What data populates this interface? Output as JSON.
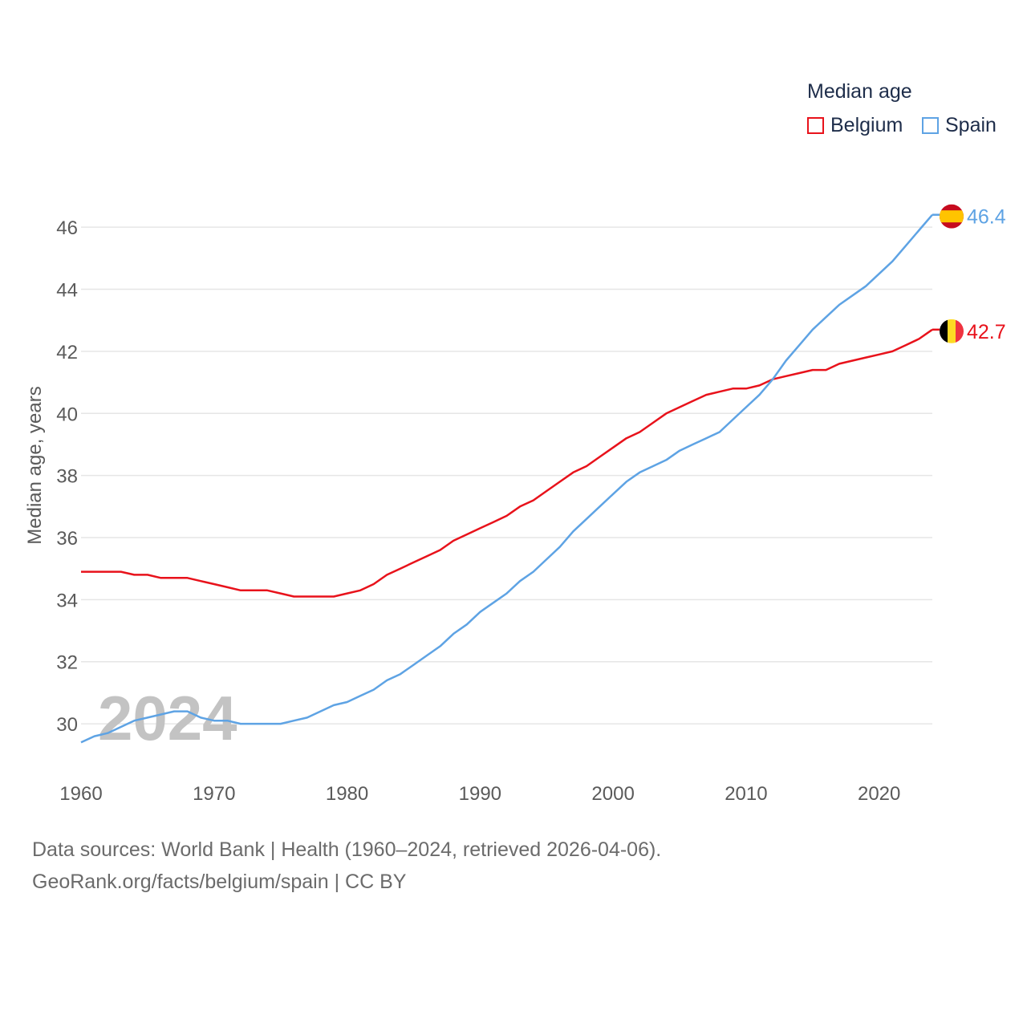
{
  "legend": {
    "title": "Median age",
    "items": [
      {
        "name": "Belgium",
        "color": "#e8121b"
      },
      {
        "name": "Spain",
        "color": "#5ea3e4"
      }
    ]
  },
  "watermark_year": "2024",
  "footer": {
    "line1": "Data sources: World Bank | Health (1960–2024, retrieved 2026-04-06).",
    "line2": "GeoRank.org/facts/belgium/spain | CC BY"
  },
  "chart_data": {
    "type": "line",
    "title": "Median age",
    "xlabel": "",
    "ylabel": "Median age, years",
    "xlim": [
      1960,
      2024
    ],
    "ylim": [
      28.4,
      47.4
    ],
    "x_ticks": [
      1960,
      1970,
      1980,
      1990,
      2000,
      2010,
      2020
    ],
    "y_ticks": [
      30,
      32,
      34,
      36,
      38,
      40,
      42,
      44,
      46
    ],
    "grid": true,
    "legend_position": "top-right",
    "x": [
      1960,
      1961,
      1962,
      1963,
      1964,
      1965,
      1966,
      1967,
      1968,
      1969,
      1970,
      1971,
      1972,
      1973,
      1974,
      1975,
      1976,
      1977,
      1978,
      1979,
      1980,
      1981,
      1982,
      1983,
      1984,
      1985,
      1986,
      1987,
      1988,
      1989,
      1990,
      1991,
      1992,
      1993,
      1994,
      1995,
      1996,
      1997,
      1998,
      1999,
      2000,
      2001,
      2002,
      2003,
      2004,
      2005,
      2006,
      2007,
      2008,
      2009,
      2010,
      2011,
      2012,
      2013,
      2014,
      2015,
      2016,
      2017,
      2018,
      2019,
      2020,
      2021,
      2022,
      2023,
      2024
    ],
    "series": [
      {
        "name": "Belgium",
        "color": "#e8121b",
        "end_label": "42.7",
        "values": [
          34.9,
          34.9,
          34.9,
          34.9,
          34.8,
          34.8,
          34.7,
          34.7,
          34.7,
          34.6,
          34.5,
          34.4,
          34.3,
          34.3,
          34.3,
          34.2,
          34.1,
          34.1,
          34.1,
          34.1,
          34.2,
          34.3,
          34.5,
          34.8,
          35.0,
          35.2,
          35.4,
          35.6,
          35.9,
          36.1,
          36.3,
          36.5,
          36.7,
          37.0,
          37.2,
          37.5,
          37.8,
          38.1,
          38.3,
          38.6,
          38.9,
          39.2,
          39.4,
          39.7,
          40.0,
          40.2,
          40.4,
          40.6,
          40.7,
          40.8,
          40.8,
          40.9,
          41.1,
          41.2,
          41.3,
          41.4,
          41.4,
          41.6,
          41.7,
          41.8,
          41.9,
          42.0,
          42.2,
          42.4,
          42.7
        ]
      },
      {
        "name": "Spain",
        "color": "#5ea3e4",
        "end_label": "46.4",
        "values": [
          29.4,
          29.6,
          29.7,
          29.9,
          30.1,
          30.2,
          30.3,
          30.4,
          30.4,
          30.2,
          30.1,
          30.1,
          30.0,
          30.0,
          30.0,
          30.0,
          30.1,
          30.2,
          30.4,
          30.6,
          30.7,
          30.9,
          31.1,
          31.4,
          31.6,
          31.9,
          32.2,
          32.5,
          32.9,
          33.2,
          33.6,
          33.9,
          34.2,
          34.6,
          34.9,
          35.3,
          35.7,
          36.2,
          36.6,
          37.0,
          37.4,
          37.8,
          38.1,
          38.3,
          38.5,
          38.8,
          39.0,
          39.2,
          39.4,
          39.8,
          40.2,
          40.6,
          41.1,
          41.7,
          42.2,
          42.7,
          43.1,
          43.5,
          43.8,
          44.1,
          44.5,
          44.9,
          45.4,
          45.9,
          46.4
        ]
      }
    ]
  }
}
